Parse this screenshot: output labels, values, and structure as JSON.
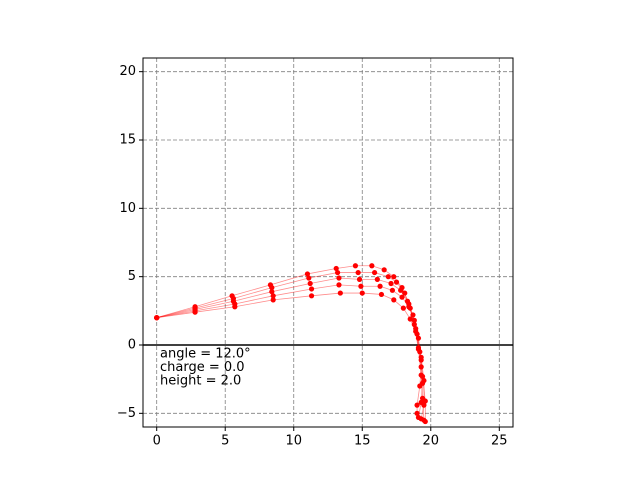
{
  "chart_data": {
    "type": "line",
    "xlim": [
      -1,
      26
    ],
    "ylim": [
      -6,
      21
    ],
    "xticks": [
      0,
      5,
      10,
      15,
      20,
      25
    ],
    "yticks": [
      {
        "value": -5,
        "label": "−5"
      },
      0,
      5,
      10,
      15,
      20
    ],
    "grid": true,
    "hline": 0,
    "annotations": [
      "angle = 12.0°",
      "charge = 0.0",
      "height = 2.0"
    ],
    "series": [
      {
        "color": "#ff0000",
        "x": [
          0,
          2.8,
          5.5,
          8.3,
          11.0,
          13.1,
          14.5,
          15.7,
          16.6,
          17.3,
          17.9,
          18.4,
          18.8,
          19.1,
          19.3,
          19.4,
          19.5
        ],
        "values": [
          2,
          2.8,
          3.6,
          4.4,
          5.2,
          5.6,
          5.8,
          5.8,
          5.5,
          5.0,
          4.2,
          3.0,
          1.5,
          -0.3,
          -2.2,
          -3.9,
          -5.5
        ]
      },
      {
        "color": "#ff0000",
        "x": [
          0,
          2.8,
          5.6,
          8.4,
          11.1,
          13.2,
          14.7,
          15.9,
          16.9,
          17.5,
          18.1,
          18.5,
          18.9,
          19.2,
          19.4,
          19.6,
          19.6
        ],
        "values": [
          2,
          2.7,
          3.4,
          4.2,
          4.9,
          5.3,
          5.3,
          5.3,
          5.0,
          4.6,
          3.8,
          2.7,
          1.2,
          -0.5,
          -2.3,
          -4.1,
          -5.6
        ]
      },
      {
        "color": "#ff0000",
        "x": [
          0,
          2.8,
          5.6,
          8.4,
          11.2,
          13.3,
          14.8,
          16.1,
          17.1,
          17.8,
          18.3,
          18.7,
          19.0,
          19.3,
          19.5,
          19.5,
          19.3
        ],
        "values": [
          2,
          2.6,
          3.2,
          3.9,
          4.5,
          4.9,
          4.8,
          4.8,
          4.5,
          4.0,
          3.2,
          2.2,
          0.8,
          -0.9,
          -2.6,
          -4.4,
          -5.4
        ]
      },
      {
        "color": "#ff0000",
        "x": [
          0,
          2.8,
          5.7,
          8.5,
          11.3,
          13.3,
          14.9,
          16.3,
          17.2,
          17.9,
          18.4,
          18.8,
          19.1,
          19.3,
          19.4,
          19.3,
          19.1
        ],
        "values": [
          2,
          2.5,
          3.0,
          3.6,
          4.1,
          4.4,
          4.3,
          4.3,
          4.0,
          3.5,
          2.8,
          1.8,
          0.5,
          -1.1,
          -2.8,
          -4.2,
          -5.3
        ]
      },
      {
        "color": "#ff0000",
        "x": [
          0,
          2.8,
          5.7,
          8.5,
          11.3,
          13.4,
          15.0,
          16.4,
          17.3,
          18.0,
          18.5,
          18.9,
          19.1,
          19.3,
          19.2,
          19.0,
          19.0
        ],
        "values": [
          2,
          2.4,
          2.8,
          3.3,
          3.6,
          3.8,
          3.8,
          3.7,
          3.3,
          2.7,
          1.9,
          1.0,
          -0.2,
          -1.6,
          -3.0,
          -4.4,
          -5.0
        ]
      }
    ]
  }
}
